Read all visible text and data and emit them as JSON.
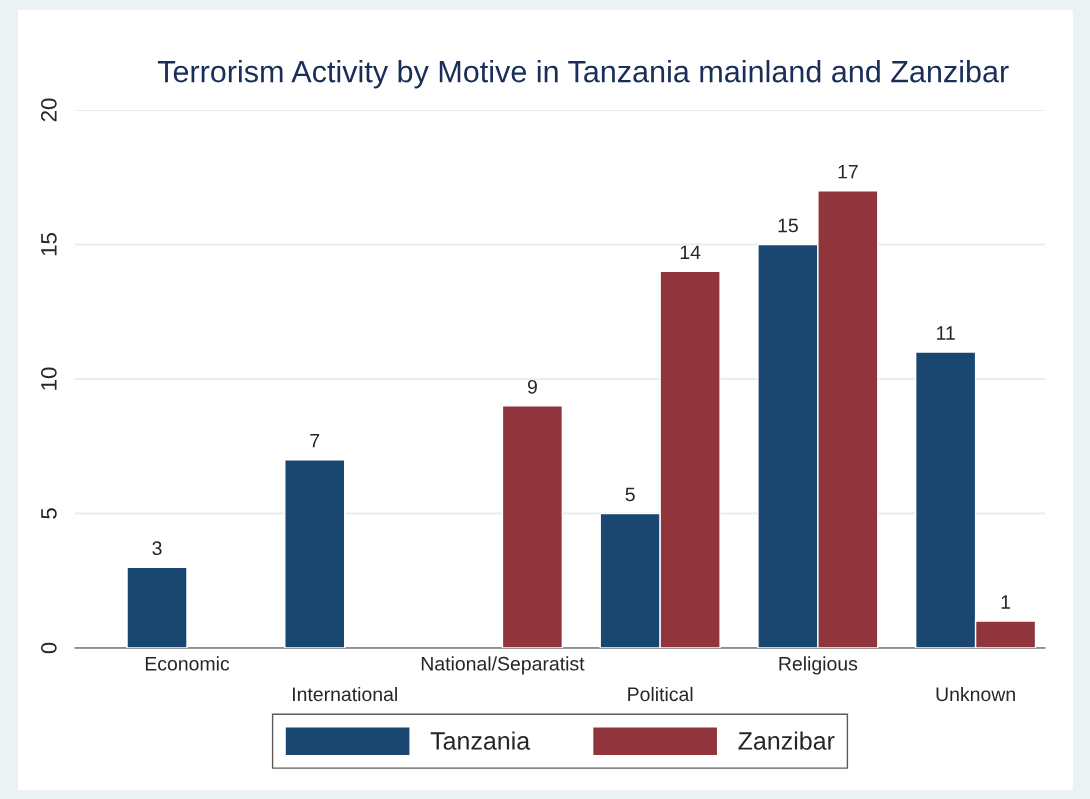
{
  "chart_data": {
    "type": "bar",
    "title": "Terrorism Activity by Motive in Tanzania mainland and Zanzibar",
    "categories": [
      "Economic",
      "International",
      "National/Separatist",
      "Political",
      "Religious",
      "Unknown"
    ],
    "series": [
      {
        "name": "Tanzania",
        "color": "#1a476f",
        "values": [
          3,
          7,
          null,
          5,
          15,
          11
        ]
      },
      {
        "name": "Zanzibar",
        "color": "#90353b",
        "values": [
          null,
          null,
          9,
          14,
          17,
          1
        ]
      }
    ],
    "ylim": [
      0,
      20
    ],
    "yticks": [
      0,
      5,
      10,
      15,
      20
    ],
    "grid": "y",
    "legend": "bottom",
    "data_labels": true
  }
}
